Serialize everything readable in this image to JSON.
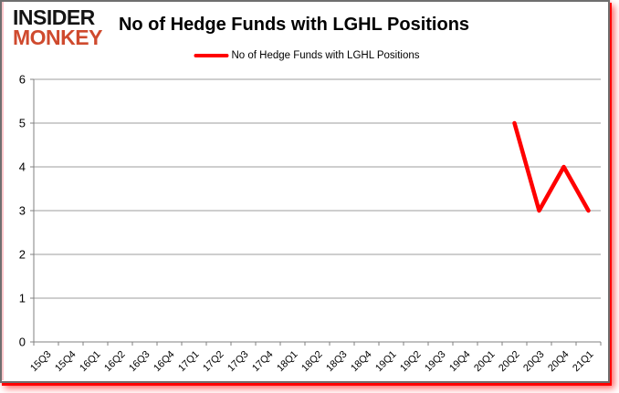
{
  "logo": {
    "line1": "INSIDER",
    "line2": "MONKEY"
  },
  "colors": {
    "series": "#ff0000",
    "logo_dark": "#141414",
    "logo_accent": "#cf4a2e",
    "gridline": "#9c9c9c",
    "axis": "#808080",
    "text": "#000000"
  },
  "chart_data": {
    "type": "line",
    "title": "No of Hedge Funds with LGHL Positions",
    "categories": [
      "15Q3",
      "15Q4",
      "16Q1",
      "16Q2",
      "16Q3",
      "16Q4",
      "17Q1",
      "17Q2",
      "17Q3",
      "17Q4",
      "18Q1",
      "18Q2",
      "18Q3",
      "18Q4",
      "19Q1",
      "19Q2",
      "19Q3",
      "19Q4",
      "20Q1",
      "20Q2",
      "20Q3",
      "20Q4",
      "21Q1"
    ],
    "series": [
      {
        "name": "No of Hedge Funds with LGHL Positions",
        "color": "#ff0000",
        "values": [
          null,
          null,
          null,
          null,
          null,
          null,
          null,
          null,
          null,
          null,
          null,
          null,
          null,
          null,
          null,
          null,
          null,
          null,
          null,
          5,
          3,
          4,
          3
        ]
      }
    ],
    "xlabel": "",
    "ylabel": "",
    "ylim": [
      0,
      6
    ],
    "yticks": [
      0,
      1,
      2,
      3,
      4,
      5,
      6
    ],
    "grid": true,
    "legend_position": "top-center"
  }
}
